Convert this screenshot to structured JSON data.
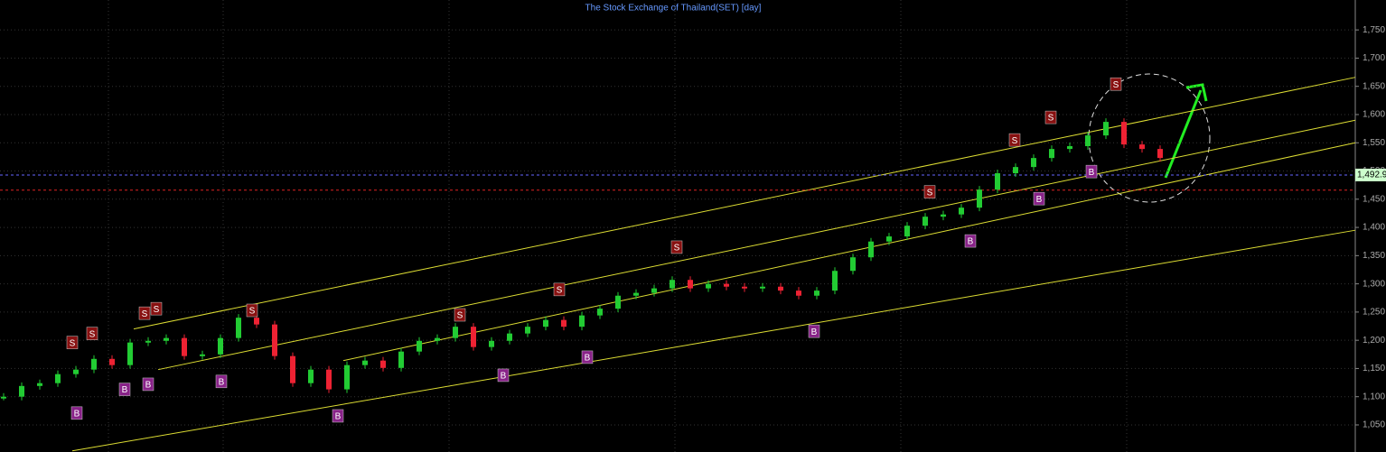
{
  "chart_data": {
    "type": "candlestick",
    "title": "The Stock Exchange of Thailand(SET) [day]",
    "categories": [
      null,
      null,
      null,
      null,
      null,
      null,
      null,
      null,
      null,
      null,
      null,
      null,
      null,
      null,
      null,
      null,
      null,
      null,
      null,
      null,
      null,
      null,
      null,
      null,
      null,
      null,
      null,
      null,
      null,
      null,
      null,
      null,
      null,
      null,
      null,
      null,
      null,
      null,
      null,
      null,
      null,
      null,
      null,
      null,
      null,
      null,
      null,
      null,
      null,
      null,
      null,
      null,
      null,
      null,
      null,
      null,
      null,
      null,
      null,
      null,
      null,
      null,
      null,
      null,
      null
    ],
    "series": [
      {
        "values": [
          1100,
          1119,
          1124,
          1140,
          1148,
          1167,
          1156,
          1196,
          1199,
          1204,
          1172,
          1175,
          1204,
          1240,
          1228,
          1172,
          1124,
          1148,
          1113,
          1156,
          1164,
          1151,
          1180,
          1199,
          1204,
          1224,
          1188,
          1199,
          1212,
          1224,
          1236,
          1224,
          1244,
          1256,
          1279,
          1284,
          1292,
          1307,
          1292,
          1300,
          1295,
          1292,
          1295,
          1288,
          1279,
          1288,
          1323,
          1347,
          1375,
          1384,
          1403,
          1419,
          1423,
          1435,
          1467,
          1496,
          1507,
          1523,
          1539,
          1544,
          1563,
          1587,
          1547,
          1539,
          1523
        ],
        "up_color": "#22cc33",
        "down_color": "#ee2233"
      }
    ],
    "ylim": [
      1002,
      1803
    ],
    "yticks": [
      {
        "value": 1050,
        "label": "1,050"
      },
      {
        "value": 1100,
        "label": "1,100"
      },
      {
        "value": 1150,
        "label": "1,150"
      },
      {
        "value": 1200,
        "label": "1,200"
      },
      {
        "value": 1250,
        "label": "1,250"
      },
      {
        "value": 1300,
        "label": "1,300"
      },
      {
        "value": 1350,
        "label": "1,350"
      },
      {
        "value": 1400,
        "label": "1,400"
      },
      {
        "value": 1450,
        "label": "1,450"
      },
      {
        "value": 1500,
        "label": "1,500"
      },
      {
        "value": 1550,
        "label": "1,550"
      },
      {
        "value": 1600,
        "label": "1,600"
      },
      {
        "value": 1650,
        "label": "1,650"
      },
      {
        "value": 1700,
        "label": "1,700"
      },
      {
        "value": 1750,
        "label": "1,750"
      }
    ],
    "grid": true,
    "annotations": [
      {
        "text": "S",
        "x": 4,
        "y": 1196
      },
      {
        "text": "S",
        "x": 5.1,
        "y": 1212
      },
      {
        "text": "S",
        "x": 8,
        "y": 1248
      },
      {
        "text": "S",
        "x": 8.65,
        "y": 1256
      },
      {
        "text": "S",
        "x": 13.95,
        "y": 1253
      },
      {
        "text": "S",
        "x": 25.45,
        "y": 1245
      },
      {
        "text": "S",
        "x": 30.95,
        "y": 1290
      },
      {
        "text": "S",
        "x": 37.45,
        "y": 1365
      },
      {
        "text": "S",
        "x": 51.45,
        "y": 1463
      },
      {
        "text": "S",
        "x": 56.15,
        "y": 1555
      },
      {
        "text": "S",
        "x": 58.15,
        "y": 1595
      },
      {
        "text": "S",
        "x": 61.75,
        "y": 1654
      },
      {
        "text": "B",
        "x": 4.25,
        "y": 1071
      },
      {
        "text": "B",
        "x": 6.9,
        "y": 1113
      },
      {
        "text": "B",
        "x": 8.2,
        "y": 1122
      },
      {
        "text": "B",
        "x": 12.25,
        "y": 1127
      },
      {
        "text": "B",
        "x": 18.7,
        "y": 1066
      },
      {
        "text": "B",
        "x": 27.85,
        "y": 1138
      },
      {
        "text": "B",
        "x": 32.5,
        "y": 1170
      },
      {
        "text": "B",
        "x": 45.05,
        "y": 1216
      },
      {
        "text": "B",
        "x": 53.7,
        "y": 1376
      },
      {
        "text": "B",
        "x": 57.5,
        "y": 1451
      },
      {
        "text": "B",
        "x": 60.4,
        "y": 1499
      }
    ],
    "trend_lines": [
      {
        "from": [
          7.4,
          1220
        ],
        "to": [
          75,
          1666
        ]
      },
      {
        "from": [
          8.75,
          1148
        ],
        "to": [
          75,
          1590
        ]
      },
      {
        "from": [
          19,
          1164
        ],
        "to": [
          75,
          1550
        ]
      },
      {
        "from": [
          4,
          1004
        ],
        "to": [
          75,
          1395
        ]
      }
    ],
    "last_price": {
      "value": 1492.9,
      "label": "1,492.9",
      "color": "#6666ff"
    },
    "support_level": {
      "value": 1466,
      "color": "#dd2222"
    }
  }
}
